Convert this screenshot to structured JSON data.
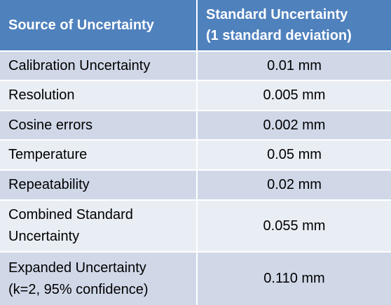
{
  "table": {
    "header": {
      "col1": "Source of Uncertainty",
      "col2_line1": "Standard Uncertainty",
      "col2_line2": "(1 standard deviation)"
    },
    "rows": [
      {
        "source": "Calibration Uncertainty",
        "value": "0.01 mm"
      },
      {
        "source": "Resolution",
        "value": "0.005 mm"
      },
      {
        "source": "Cosine errors",
        "value": "0.002 mm"
      },
      {
        "source": "Temperature",
        "value": "0.05 mm"
      },
      {
        "source": "Repeatability",
        "value": "0.02 mm"
      },
      {
        "source_line1": "Combined Standard",
        "source_line2": "Uncertainty",
        "value": "0.055 mm"
      },
      {
        "source_line1": "Expanded Uncertainty",
        "source_line2": "(k=2, 95% confidence)",
        "value": "0.110 mm"
      }
    ]
  },
  "colors": {
    "header_bg": "#4f81bd",
    "row_dark": "#d0d8e8",
    "row_light": "#e9edf4"
  }
}
